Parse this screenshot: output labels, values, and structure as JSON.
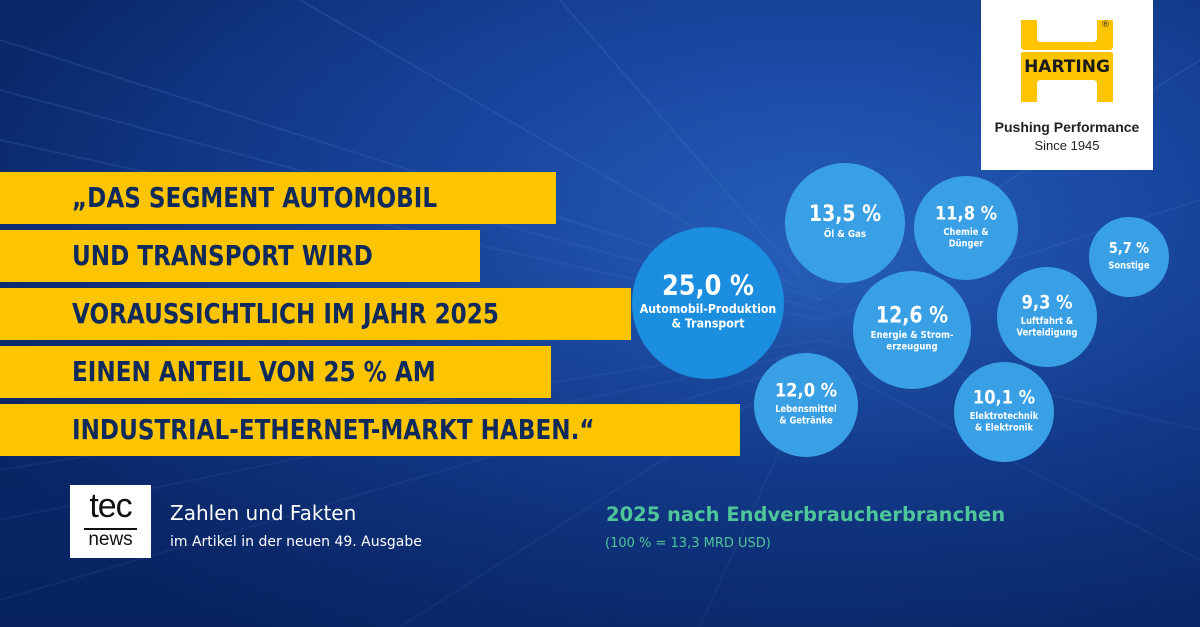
{
  "logo": {
    "name": "HARTING",
    "registered_mark": "®",
    "claim_line1": "Pushing Performance",
    "claim_line2": "Since 1945",
    "yellow": "#fdc400"
  },
  "quote": {
    "lines": [
      "„DAS SEGMENT AUTOMOBIL",
      "UND TRANSPORT WIRD",
      "VORAUSSICHTLICH IM JAHR 2025",
      "EINEN ANTEIL VON 25 % AM",
      "INDUSTRIAL-ETHERNET-MARKT HABEN.“"
    ]
  },
  "tecnews": {
    "logo_top": "tec",
    "logo_bottom": "news",
    "title": "Zahlen und Fakten",
    "subtitle": "im Artikel in der neuen 49. Ausgabe"
  },
  "chart_data": {
    "type": "bubble",
    "title": "2025 nach Endverbraucherbranchen",
    "subtitle": "(100 % = 13,3 MRD USD)",
    "series": [
      {
        "category": "Automobil-Produktion & Transport",
        "value": 25.0,
        "value_label": "25,0 %",
        "label_lines": [
          "Automobil-Produktion",
          "& Transport"
        ]
      },
      {
        "category": "Öl & Gas",
        "value": 13.5,
        "value_label": "13,5 %",
        "label_lines": [
          "Öl & Gas"
        ]
      },
      {
        "category": "Chemie & Dünger",
        "value": 11.8,
        "value_label": "11,8 %",
        "label_lines": [
          "Chemie &",
          "Dünger"
        ]
      },
      {
        "category": "Sonstige",
        "value": 5.7,
        "value_label": "5,7 %",
        "label_lines": [
          "Sonstige"
        ]
      },
      {
        "category": "Energie & Stromerzeugung",
        "value": 12.6,
        "value_label": "12,6 %",
        "label_lines": [
          "Energie & Strom-",
          "erzeugung"
        ]
      },
      {
        "category": "Luftfahrt & Verteidigung",
        "value": 9.3,
        "value_label": "9,3 %",
        "label_lines": [
          "Luftfahrt &",
          "Verteidigung"
        ]
      },
      {
        "category": "Lebensmittel & Getränke",
        "value": 12.0,
        "value_label": "12,0 %",
        "label_lines": [
          "Lebensmittel",
          "& Getränke"
        ]
      },
      {
        "category": "Elektrotechnik & Elektronik",
        "value": 10.1,
        "value_label": "10,1 %",
        "label_lines": [
          "Elektrotechnik",
          "& Elektronik"
        ]
      }
    ],
    "colors": {
      "largest_bubble": "#1b8ee0",
      "bubble": "#3aa0e6",
      "bubble_text": "#ffffff",
      "title": "#4fc59a"
    }
  }
}
